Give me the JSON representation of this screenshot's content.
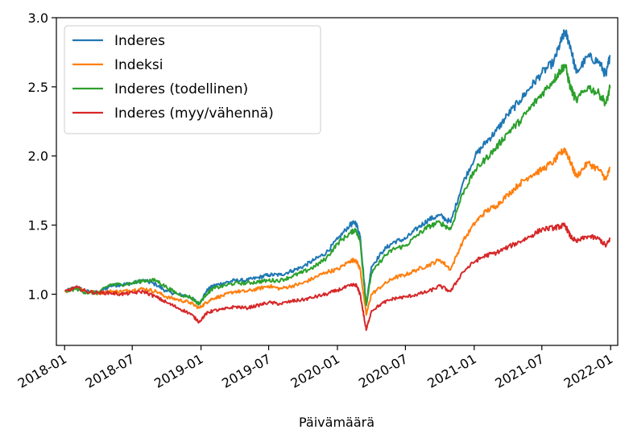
{
  "chart_data": {
    "type": "line",
    "xlabel": "Päivämäärä",
    "ylabel": "",
    "title": "",
    "ylim": [
      0.63,
      3.0
    ],
    "xlim": [
      "2017-12-10",
      "2022-01-20"
    ],
    "x_ticks": [
      "2018-01",
      "2018-07",
      "2019-01",
      "2019-07",
      "2020-01",
      "2020-07",
      "2021-01",
      "2021-07",
      "2022-01"
    ],
    "y_ticks": [
      "1.0",
      "1.5",
      "2.0",
      "2.5",
      "3.0"
    ],
    "grid": false,
    "legend_position": "top-left",
    "x": [
      "2018-01-02",
      "2018-02-01",
      "2018-03-01",
      "2018-04-02",
      "2018-05-02",
      "2018-06-01",
      "2018-07-02",
      "2018-08-01",
      "2018-09-03",
      "2018-10-01",
      "2018-11-01",
      "2018-12-03",
      "2018-12-27",
      "2019-01-15",
      "2019-02-01",
      "2019-03-01",
      "2019-04-01",
      "2019-05-02",
      "2019-06-03",
      "2019-07-01",
      "2019-08-01",
      "2019-09-02",
      "2019-10-01",
      "2019-11-01",
      "2019-12-02",
      "2020-01-02",
      "2020-02-03",
      "2020-02-19",
      "2020-03-02",
      "2020-03-18",
      "2020-04-01",
      "2020-05-04",
      "2020-06-01",
      "2020-07-01",
      "2020-08-03",
      "2020-09-01",
      "2020-10-01",
      "2020-10-30",
      "2020-12-01",
      "2021-01-04",
      "2021-02-01",
      "2021-03-01",
      "2021-04-01",
      "2021-05-03",
      "2021-06-01",
      "2021-07-01",
      "2021-08-02",
      "2021-08-20",
      "2021-09-01",
      "2021-09-15",
      "2021-10-01",
      "2021-11-01",
      "2021-12-01",
      "2021-12-20",
      "2021-12-30"
    ],
    "series": [
      {
        "name": "Inderes",
        "color": "#1f77b4",
        "values": [
          1.02,
          1.05,
          1.02,
          1.01,
          1.06,
          1.07,
          1.08,
          1.1,
          1.07,
          1.02,
          1.0,
          0.98,
          0.93,
          1.02,
          1.06,
          1.08,
          1.1,
          1.1,
          1.12,
          1.14,
          1.14,
          1.17,
          1.2,
          1.25,
          1.3,
          1.4,
          1.5,
          1.52,
          1.42,
          0.92,
          1.2,
          1.32,
          1.38,
          1.4,
          1.48,
          1.54,
          1.57,
          1.52,
          1.8,
          2.0,
          2.1,
          2.18,
          2.3,
          2.4,
          2.5,
          2.6,
          2.68,
          2.82,
          2.9,
          2.8,
          2.6,
          2.72,
          2.68,
          2.58,
          2.73
        ]
      },
      {
        "name": "Indeksi",
        "color": "#ff7f0e",
        "values": [
          1.02,
          1.05,
          1.02,
          1.01,
          1.02,
          1.02,
          1.03,
          1.04,
          1.02,
          0.98,
          0.96,
          0.94,
          0.9,
          0.94,
          0.97,
          0.99,
          1.02,
          1.02,
          1.04,
          1.06,
          1.04,
          1.06,
          1.08,
          1.12,
          1.16,
          1.18,
          1.24,
          1.25,
          1.18,
          0.85,
          1.0,
          1.07,
          1.12,
          1.14,
          1.18,
          1.21,
          1.25,
          1.18,
          1.38,
          1.52,
          1.6,
          1.64,
          1.72,
          1.8,
          1.86,
          1.9,
          1.96,
          2.02,
          2.05,
          1.96,
          1.85,
          1.95,
          1.9,
          1.83,
          1.91
        ]
      },
      {
        "name": "Inderes (todellinen)",
        "color": "#2ca02c",
        "values": [
          1.02,
          1.04,
          1.01,
          1.01,
          1.07,
          1.07,
          1.08,
          1.1,
          1.1,
          1.05,
          1.0,
          0.98,
          0.93,
          1.0,
          1.04,
          1.06,
          1.08,
          1.08,
          1.09,
          1.1,
          1.1,
          1.13,
          1.16,
          1.2,
          1.26,
          1.37,
          1.44,
          1.47,
          1.38,
          0.92,
          1.15,
          1.27,
          1.33,
          1.35,
          1.43,
          1.49,
          1.52,
          1.47,
          1.73,
          1.9,
          1.98,
          2.06,
          2.17,
          2.25,
          2.35,
          2.45,
          2.55,
          2.62,
          2.66,
          2.5,
          2.4,
          2.5,
          2.45,
          2.38,
          2.49
        ]
      },
      {
        "name": "Inderes (myy/vähennä)",
        "color": "#d62728",
        "values": [
          1.02,
          1.05,
          1.02,
          1.01,
          1.01,
          1.0,
          1.01,
          1.02,
          0.98,
          0.94,
          0.9,
          0.86,
          0.8,
          0.86,
          0.88,
          0.89,
          0.91,
          0.9,
          0.92,
          0.94,
          0.93,
          0.95,
          0.96,
          0.98,
          1.0,
          1.03,
          1.06,
          1.07,
          1.0,
          0.74,
          0.88,
          0.94,
          0.97,
          0.98,
          1.0,
          1.02,
          1.06,
          1.02,
          1.16,
          1.24,
          1.28,
          1.3,
          1.34,
          1.38,
          1.42,
          1.47,
          1.48,
          1.49,
          1.5,
          1.42,
          1.38,
          1.42,
          1.4,
          1.35,
          1.4
        ]
      }
    ]
  }
}
